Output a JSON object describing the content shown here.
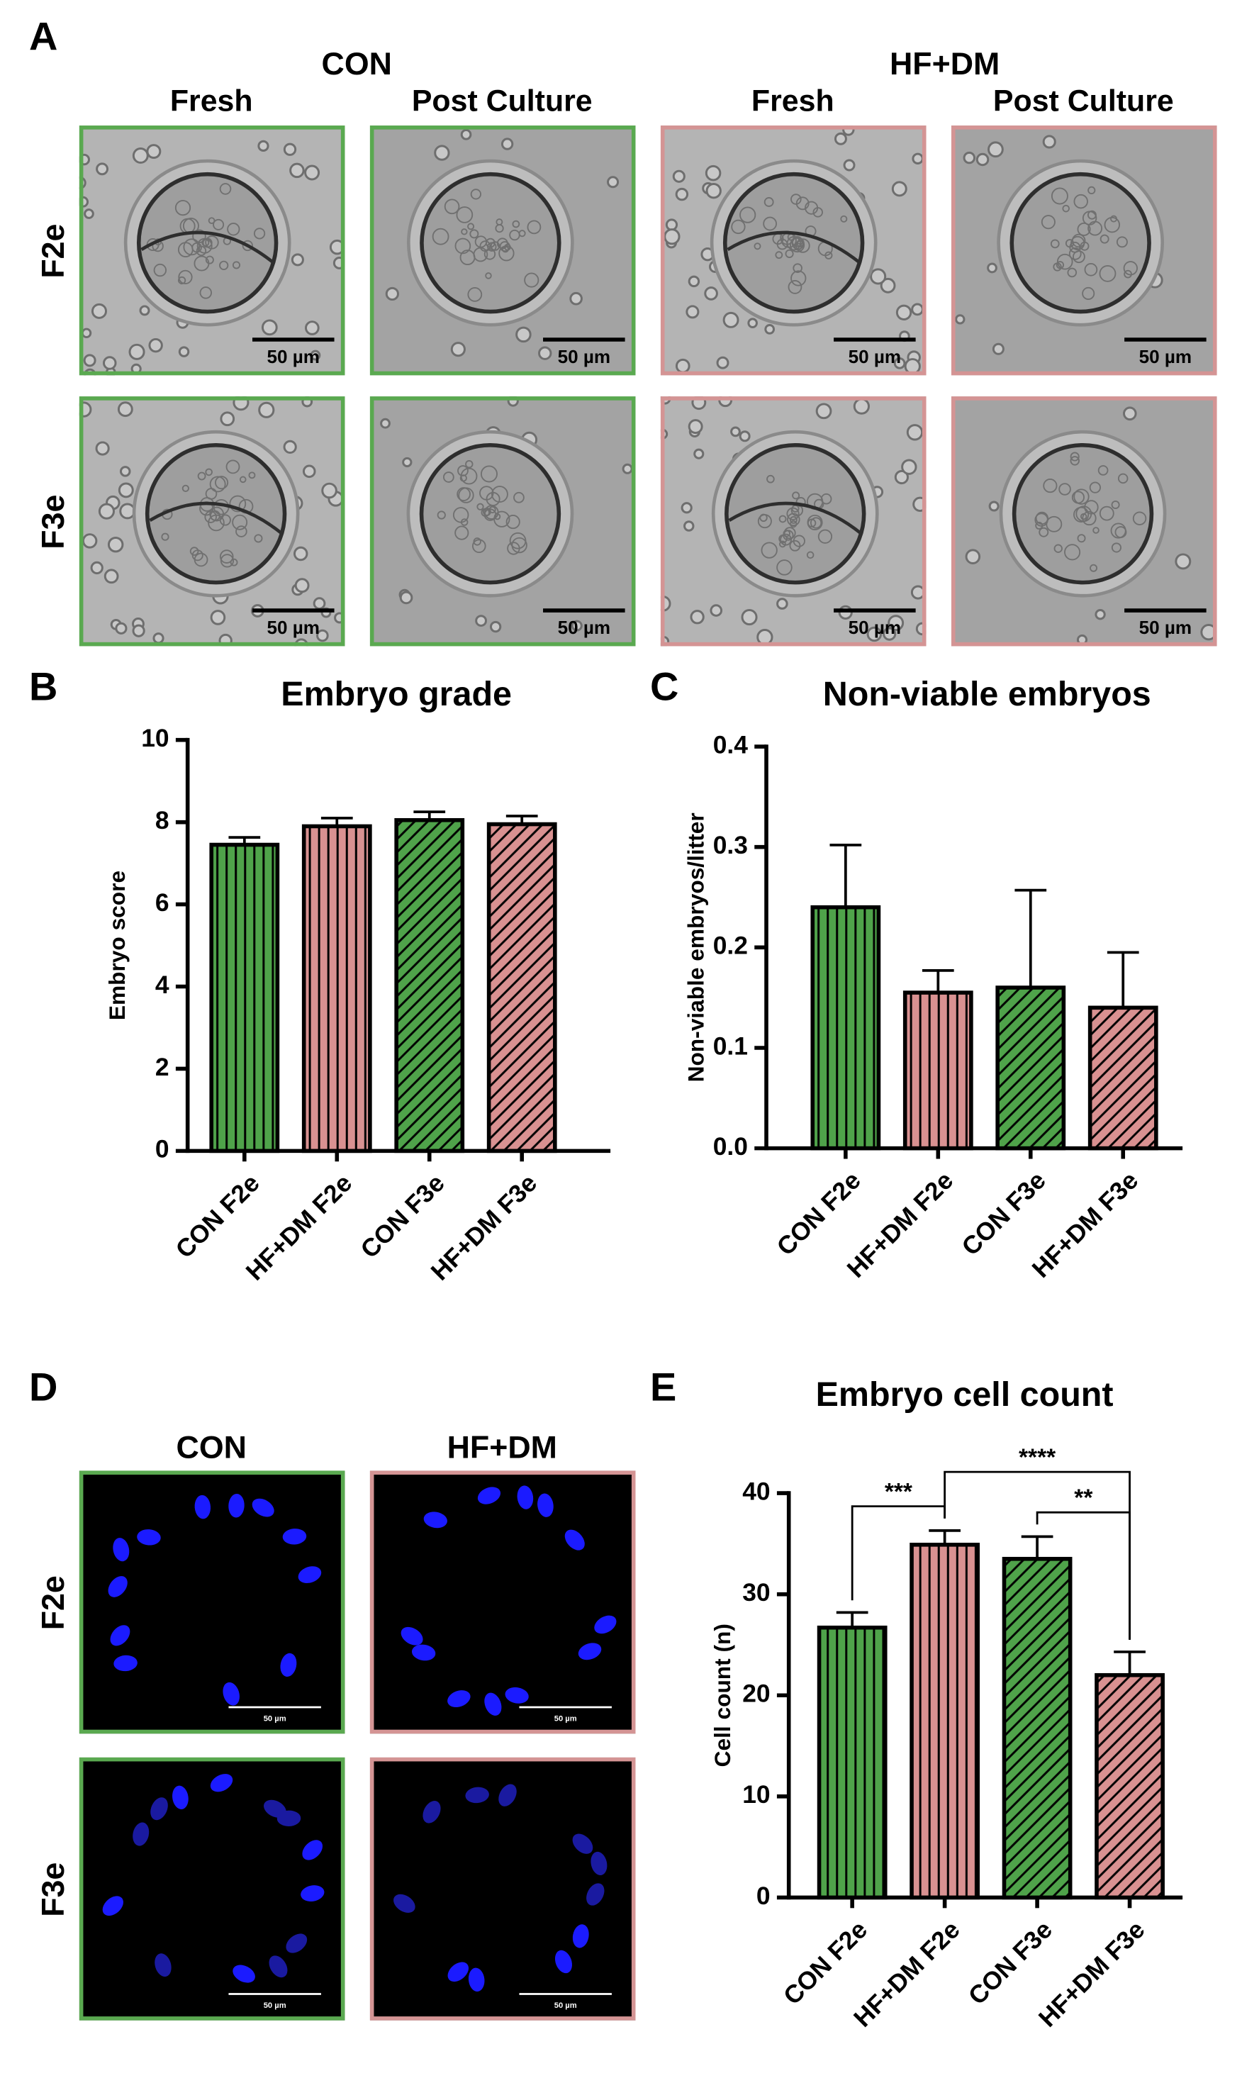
{
  "panels": {
    "A": {
      "letter": "A",
      "groups": [
        "CON",
        "HF+DM"
      ],
      "columns": [
        "Fresh",
        "Post Culture",
        "Fresh",
        "Post Culture"
      ],
      "rows": [
        "F2e",
        "F3e"
      ],
      "scale_bar": "50 µm"
    },
    "D": {
      "letter": "D",
      "columns": [
        "CON",
        "HF+DM"
      ],
      "rows": [
        "F2e",
        "F3e"
      ],
      "scale_bar": "50 µm"
    }
  },
  "chart_data": [
    {
      "type": "bar",
      "label": "B",
      "title": "Embryo grade",
      "ylabel": "Embryo score",
      "categories": [
        "CON F2e",
        "HF+DM F2e",
        "CON F3e",
        "HF+DM F3e"
      ],
      "values": [
        7.45,
        7.9,
        8.05,
        7.95
      ],
      "errors": [
        0.18,
        0.2,
        0.2,
        0.2
      ],
      "colors": [
        "#4fa34a",
        "#d99191",
        "#4fa34a",
        "#d99191"
      ],
      "hatches": [
        "vertical",
        "vertical",
        "diagonal",
        "diagonal"
      ],
      "ylim": [
        0,
        10
      ],
      "yticks": [
        0,
        2,
        4,
        6,
        8,
        10
      ]
    },
    {
      "type": "bar",
      "label": "C",
      "title": "Non-viable embryos",
      "ylabel": "Non-viable embryos/litter",
      "categories": [
        "CON F2e",
        "HF+DM F2e",
        "CON F3e",
        "HF+DM F3e"
      ],
      "values": [
        0.24,
        0.155,
        0.16,
        0.14
      ],
      "errors": [
        0.062,
        0.022,
        0.097,
        0.055
      ],
      "colors": [
        "#4fa34a",
        "#d99191",
        "#4fa34a",
        "#d99191"
      ],
      "hatches": [
        "vertical",
        "vertical",
        "diagonal",
        "diagonal"
      ],
      "ylim": [
        0,
        0.4
      ],
      "yticks": [
        {
          "value": 0,
          "label": "0.0"
        },
        0.1,
        0.2,
        0.3,
        0.4
      ]
    },
    {
      "type": "bar",
      "label": "E",
      "title": "Embryo cell count",
      "ylabel": "Cell count (n)",
      "categories": [
        "CON F2e",
        "HF+DM F2e",
        "CON F3e",
        "HF+DM F3e"
      ],
      "values": [
        26.7,
        34.9,
        33.5,
        22
      ],
      "errors": [
        1.5,
        1.4,
        2.2,
        2.3
      ],
      "colors": [
        "#4fa34a",
        "#d99191",
        "#4fa34a",
        "#d99191"
      ],
      "hatches": [
        "vertical",
        "vertical",
        "diagonal",
        "diagonal"
      ],
      "ylim": [
        0,
        40
      ],
      "yticks": [
        0,
        10,
        20,
        30,
        40
      ],
      "annotations": [
        {
          "text": "***",
          "between": [
            "CON F2e",
            "HF+DM F2e"
          ]
        },
        {
          "text": "**",
          "between": [
            "CON F3e",
            "HF+DM F3e"
          ]
        },
        {
          "text": "****",
          "between": [
            "HF+DM F2e",
            "HF+DM F3e"
          ]
        }
      ]
    }
  ]
}
